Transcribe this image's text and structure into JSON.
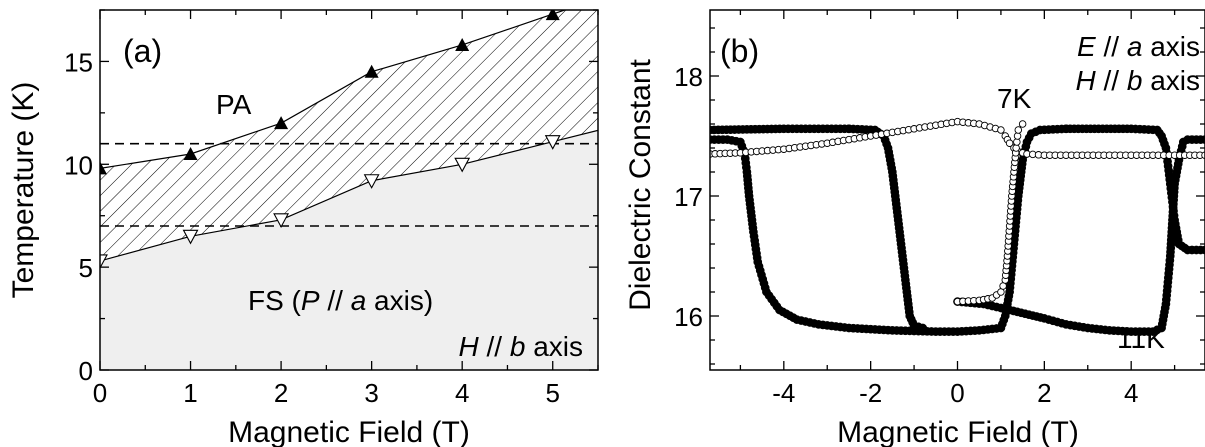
{
  "chart_data": [
    {
      "panel_label": "(a)",
      "type": "scatter",
      "xlabel": "Magnetic Field (T)",
      "ylabel": "Temperature (K)",
      "xlim": [
        0,
        5.5
      ],
      "ylim": [
        0,
        17.5
      ],
      "xticks": [
        "0",
        "1",
        "2",
        "3",
        "4",
        "5"
      ],
      "yticks": [
        "0",
        "5",
        "10",
        "15"
      ],
      "series": [
        {
          "marker": "filled-up-triangle",
          "x": [
            0,
            1,
            2,
            3,
            4,
            5
          ],
          "y": [
            9.8,
            10.5,
            12.0,
            14.5,
            15.8,
            17.3
          ]
        },
        {
          "marker": "open-down-triangle",
          "x": [
            0,
            1,
            2,
            3,
            4,
            5
          ],
          "y": [
            5.3,
            6.5,
            7.3,
            9.2,
            10.0,
            11.1
          ]
        }
      ],
      "hlines": [
        11.0,
        7.0
      ],
      "annotations": {
        "pa": "PA",
        "fs_pre": "FS (",
        "fs_p": "P",
        "fs_mid": " // ",
        "fs_a": "a",
        "fs_post": " axis)",
        "h_sym": "H",
        "h_mid": " // ",
        "h_b": "b",
        "h_post": " axis"
      },
      "colors": {
        "fs_region": "#efefef",
        "line": "#000000"
      }
    },
    {
      "panel_label": "(b)",
      "type": "line",
      "xlabel": "Magnetic Field (T)",
      "ylabel": "Dielectric Constant",
      "xlim": [
        -5.7,
        5.7
      ],
      "ylim": [
        15.55,
        18.55
      ],
      "xticks": [
        "-4",
        "-2",
        "0",
        "2",
        "4"
      ],
      "yticks": [
        "16",
        "17",
        "18"
      ],
      "series": [
        {
          "label": "7K",
          "marker": "open-circle",
          "branches": [
            {
              "x": [
                -5.7,
                -5,
                -4,
                -3,
                -2,
                -1,
                0,
                0.5,
                1.0,
                1.1,
                1.2,
                1.3,
                1.4,
                1.6,
                2,
                3,
                4,
                5,
                5.7
              ],
              "y": [
                17.35,
                17.36,
                17.39,
                17.44,
                17.5,
                17.56,
                17.62,
                17.6,
                17.55,
                17.5,
                17.44,
                17.4,
                17.37,
                17.35,
                17.34,
                17.34,
                17.34,
                17.34,
                17.34
              ]
            },
            {
              "x": [
                0,
                0.5,
                0.8,
                1.0,
                1.1,
                1.15,
                1.2,
                1.25,
                1.3,
                1.35,
                1.4,
                1.5
              ],
              "y": [
                16.12,
                16.13,
                16.15,
                16.2,
                16.3,
                16.5,
                16.75,
                17.0,
                17.2,
                17.4,
                17.55,
                17.6
              ]
            }
          ]
        },
        {
          "label": "11K",
          "marker": "filled-circle",
          "branches": [
            {
              "x": [
                -5.7,
                -5.3,
                -5.0,
                -4.9,
                -4.85,
                -4.8,
                -4.7,
                -4.6,
                -4.4,
                -4.1,
                -3.7,
                -3.2,
                -2.5,
                -1.5,
                -0.5,
                0,
                0.5,
                1.0,
                1.1,
                1.2,
                1.3,
                1.4,
                1.5,
                1.6,
                1.7,
                1.9,
                2.5
              ],
              "y": [
                17.47,
                17.47,
                17.45,
                17.35,
                17.2,
                17.0,
                16.7,
                16.45,
                16.2,
                16.05,
                15.97,
                15.93,
                15.9,
                15.88,
                15.87,
                15.87,
                15.88,
                15.9,
                16.0,
                16.2,
                16.6,
                17.0,
                17.3,
                17.45,
                17.52,
                17.55,
                17.56
              ]
            },
            {
              "x": [
                2.5,
                4.0,
                4.6,
                4.7,
                4.8,
                4.85,
                4.9,
                4.95,
                5.0,
                5.1,
                5.3,
                5.7
              ],
              "y": [
                17.56,
                17.56,
                17.55,
                17.5,
                17.4,
                17.25,
                17.1,
                16.95,
                16.8,
                16.6,
                16.55,
                16.55
              ]
            },
            {
              "x": [
                0,
                0.6,
                1.2,
                2,
                2.5,
                3,
                3.5,
                4,
                4.5,
                4.7,
                4.8,
                4.9,
                4.95,
                5.0,
                5.1,
                5.2,
                5.3,
                5.7
              ],
              "y": [
                16.12,
                16.1,
                16.05,
                15.98,
                15.93,
                15.9,
                15.88,
                15.87,
                15.87,
                15.9,
                16.1,
                16.5,
                16.8,
                17.1,
                17.3,
                17.45,
                17.47,
                17.47
              ]
            },
            {
              "x": [
                -2.5,
                -1.9,
                -1.7,
                -1.6,
                -1.5,
                -1.4,
                -1.3,
                -1.2,
                -1.1,
                -1.0,
                -0.8
              ],
              "y": [
                17.56,
                17.55,
                17.5,
                17.4,
                17.2,
                16.9,
                16.6,
                16.3,
                16.0,
                15.92,
                15.9
              ]
            },
            {
              "x": [
                -5.7,
                -4.0,
                -3.0,
                -2.5
              ],
              "y": [
                17.55,
                17.56,
                17.56,
                17.56
              ]
            }
          ]
        }
      ],
      "annotations": {
        "e_sym": "E",
        "e_mid": " // ",
        "e_a": "a",
        "e_post": " axis",
        "h_sym": "H",
        "h_mid": " // ",
        "h_b": "b",
        "h_post": " axis"
      }
    }
  ]
}
